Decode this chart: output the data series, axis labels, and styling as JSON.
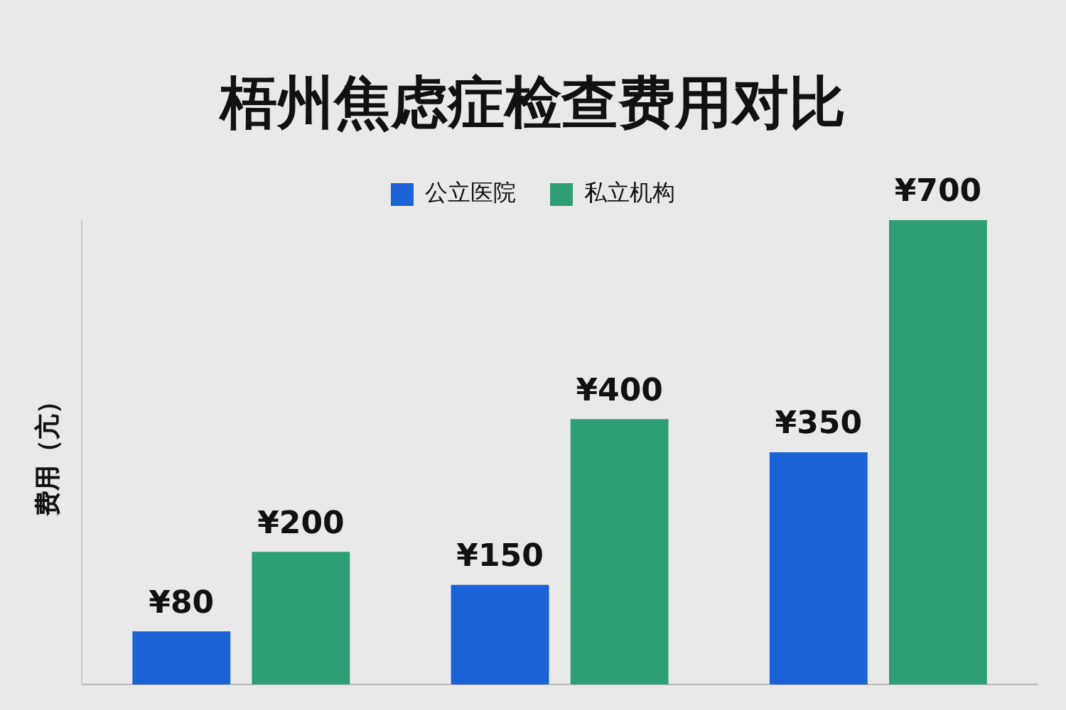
{
  "chart_data": {
    "type": "bar",
    "title": "梧州焦虑症检查费用对比",
    "ylabel": "费用（亢）",
    "categories": [
      null,
      null,
      null
    ],
    "series": [
      {
        "name": "公立医院",
        "color": "#1a62d6",
        "values": [
          80,
          150,
          350
        ],
        "value_labels": [
          "¥80",
          "¥150",
          "¥350"
        ]
      },
      {
        "name": "私立机构",
        "color": "#2e9e74",
        "values": [
          200,
          400,
          700
        ],
        "value_labels": [
          "¥200",
          "¥400",
          "¥700"
        ]
      }
    ],
    "legend": "top",
    "grid": false
  }
}
